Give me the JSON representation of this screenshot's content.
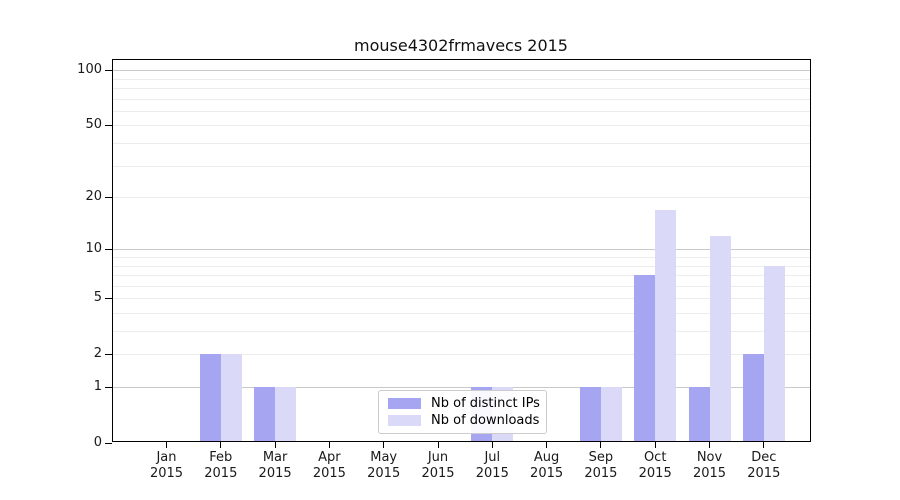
{
  "chart_data": {
    "type": "bar",
    "title": "mouse4302frmavecs 2015",
    "categories": [
      "Jan",
      "Feb",
      "Mar",
      "Apr",
      "May",
      "Jun",
      "Jul",
      "Aug",
      "Sep",
      "Oct",
      "Nov",
      "Dec"
    ],
    "category_year": "2015",
    "series": [
      {
        "name": "Nb of distinct IPs",
        "color": "#a5a5f2",
        "values": [
          0,
          2,
          1,
          0,
          0,
          0,
          1,
          0,
          1,
          7,
          1,
          2
        ]
      },
      {
        "name": "Nb of downloads",
        "color": "#dadaf8",
        "values": [
          0,
          2,
          1,
          0,
          0,
          0,
          1,
          0,
          1,
          17,
          12,
          8
        ]
      }
    ],
    "yaxis": {
      "scale": "log1p",
      "ticks": [
        0,
        1,
        2,
        5,
        10,
        20,
        50,
        100
      ],
      "major_gridlines": [
        1,
        10,
        100
      ],
      "minor_gridlines": [
        2,
        3,
        4,
        5,
        6,
        7,
        8,
        9,
        20,
        30,
        40,
        50,
        60,
        70,
        80,
        90
      ],
      "ylim": [
        0,
        115
      ]
    },
    "xlabel": "",
    "ylabel": "",
    "grid": "on",
    "legend_position": "bottom-center",
    "colors": {
      "spine": "#000000",
      "major_grid": "#c9c9c9",
      "minor_grid": "#ececec",
      "legend_border": "#cccccc",
      "text": "#1a1a1a"
    }
  }
}
